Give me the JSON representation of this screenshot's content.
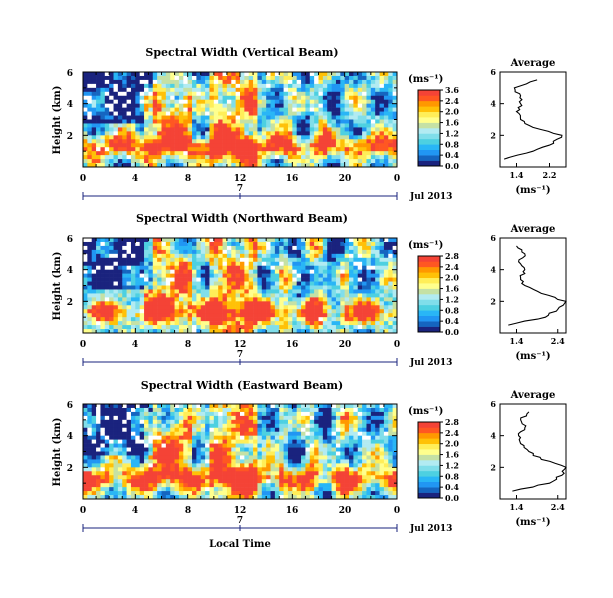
{
  "colors": {
    "colormap": [
      "#1a237e",
      "#1565c0",
      "#2196f3",
      "#29b6f6",
      "#4dd0e1",
      "#80deea",
      "#b2ebf2",
      "#c5e1a5",
      "#ffff8d",
      "#ffee58",
      "#ffc107",
      "#ff9800",
      "#ff5722",
      "#f44336"
    ],
    "missing": "#ffffff",
    "axis": "#000000",
    "date_axis": "#1a237e"
  },
  "chart_data": [
    {
      "type": "heatmap",
      "title": "Spectral Width (Vertical Beam)",
      "ylabel": "Height (km)",
      "x_ticks": [
        "0",
        "4",
        "8",
        "12",
        "16",
        "20",
        "0"
      ],
      "y_ticks": [
        "6",
        "4",
        "2"
      ],
      "xlim": [
        0,
        24
      ],
      "ylim": [
        0,
        6
      ],
      "date_marker": "7",
      "date_label": "Jul 2013",
      "colorbar": {
        "unit": "(ms⁻¹)",
        "ticks": [
          "3.6",
          "2.4",
          "2.0",
          "1.6",
          "1.2",
          "0.8",
          "0.4",
          "0.0"
        ]
      },
      "average": {
        "title": "Average",
        "unit": "(ms⁻¹)",
        "x_ticks": [
          "1.4",
          "2.2"
        ],
        "xlim": [
          1.0,
          2.6
        ],
        "y_ticks": [
          "6",
          "4",
          "2"
        ],
        "heights": [
          0.5,
          1.0,
          1.5,
          2.0,
          2.5,
          3.0,
          3.5,
          4.0,
          4.5,
          5.0,
          5.5
        ],
        "values": [
          1.1,
          1.8,
          2.3,
          2.5,
          1.8,
          1.5,
          1.4,
          1.5,
          1.5,
          1.35,
          1.9
        ]
      }
    },
    {
      "type": "heatmap",
      "title": "Spectral Width (Northward Beam)",
      "ylabel": "Height (km)",
      "x_ticks": [
        "0",
        "4",
        "8",
        "12",
        "16",
        "20",
        "0"
      ],
      "y_ticks": [
        "6",
        "4",
        "2"
      ],
      "xlim": [
        0,
        24
      ],
      "ylim": [
        0,
        6
      ],
      "date_marker": "7",
      "date_label": "Jul 2013",
      "colorbar": {
        "unit": "(ms⁻¹)",
        "ticks": [
          "2.8",
          "2.4",
          "2.0",
          "1.6",
          "1.2",
          "0.8",
          "0.4",
          "0.0"
        ]
      },
      "average": {
        "title": "Average",
        "unit": "(ms⁻¹)",
        "x_ticks": [
          "1.4",
          "2.4"
        ],
        "xlim": [
          1.0,
          2.6
        ],
        "y_ticks": [
          "6",
          "4",
          "2"
        ],
        "heights": [
          0.5,
          1.0,
          1.5,
          2.0,
          2.5,
          3.0,
          3.5,
          4.0,
          4.5,
          5.0,
          5.5
        ],
        "values": [
          1.2,
          2.1,
          2.4,
          2.6,
          2.0,
          1.6,
          1.5,
          1.6,
          1.45,
          1.6,
          1.4
        ]
      }
    },
    {
      "type": "heatmap",
      "title": "Spectral Width (Eastward Beam)",
      "ylabel": "Height (km)",
      "x_ticks": [
        "0",
        "4",
        "8",
        "12",
        "16",
        "20",
        "0"
      ],
      "y_ticks": [
        "6",
        "4",
        "2"
      ],
      "xlim": [
        0,
        24
      ],
      "ylim": [
        0,
        6
      ],
      "date_marker": "7",
      "date_label": "Jul 2013",
      "xlabel": "Local Time",
      "colorbar": {
        "unit": "(ms⁻¹)",
        "ticks": [
          "2.8",
          "2.4",
          "2.0",
          "1.6",
          "1.2",
          "0.8",
          "0.4",
          "0.0"
        ]
      },
      "average": {
        "title": "Average",
        "unit": "(ms⁻¹)",
        "x_ticks": [
          "1.4",
          "2.4"
        ],
        "xlim": [
          1.0,
          2.6
        ],
        "y_ticks": [
          "6",
          "4",
          "2"
        ],
        "heights": [
          0.5,
          1.0,
          1.5,
          2.0,
          2.5,
          3.0,
          3.5,
          4.0,
          4.5,
          5.0,
          5.5
        ],
        "values": [
          1.3,
          2.2,
          2.5,
          2.6,
          2.0,
          1.7,
          1.5,
          1.45,
          1.6,
          1.5,
          1.7
        ]
      }
    }
  ]
}
